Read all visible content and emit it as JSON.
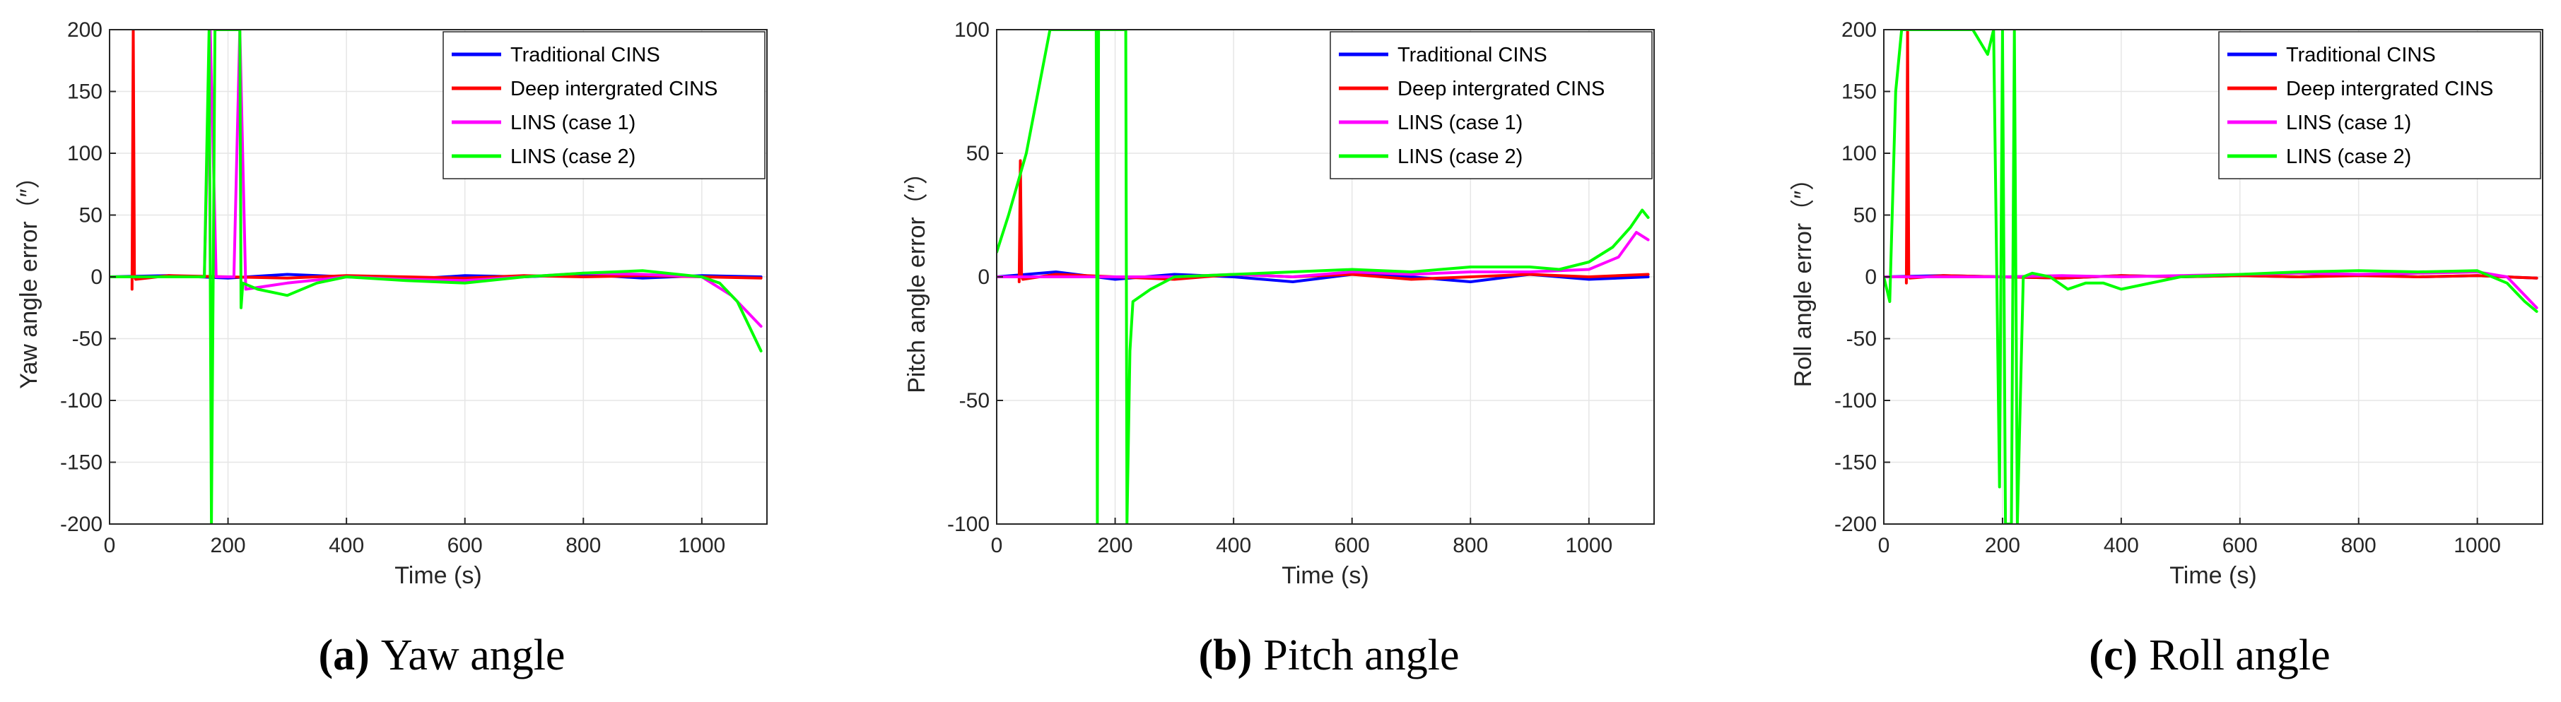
{
  "figure": {
    "background": "#ffffff"
  },
  "colors": {
    "Traditional CINS": "#0000ff",
    "Deep intergrated CINS": "#ff0000",
    "LINS (case 1)": "#ff00ff",
    "LINS (case 2)": "#00ff00"
  },
  "chart_data": [
    {
      "type": "line",
      "id": "a",
      "caption_letter": "(a)",
      "caption_text": "Yaw angle",
      "xlabel": "Time (s)",
      "ylabel": "Yaw angle error（″）",
      "xlim": [
        0,
        1110
      ],
      "ylim": [
        -200,
        200
      ],
      "xticks": [
        0,
        200,
        400,
        600,
        800,
        1000
      ],
      "yticks": [
        -200,
        -150,
        -100,
        -50,
        0,
        50,
        100,
        150,
        200
      ],
      "grid": true,
      "legend_position": "top-right",
      "series": [
        {
          "name": "Traditional CINS",
          "x": [
            0,
            100,
            200,
            300,
            400,
            500,
            600,
            700,
            800,
            900,
            1000,
            1100
          ],
          "y": [
            0,
            1,
            -1,
            2,
            0,
            -2,
            1,
            0,
            2,
            -1,
            1,
            0
          ]
        },
        {
          "name": "Deep intergrated CINS",
          "x": [
            38,
            40,
            42,
            44,
            100,
            200,
            300,
            400,
            500,
            600,
            700,
            800,
            900,
            1000,
            1100
          ],
          "y": [
            -10,
            200,
            0,
            -2,
            1,
            0,
            -1,
            1,
            0,
            -1,
            1,
            0,
            1,
            0,
            -1
          ]
        },
        {
          "name": "LINS (case 1)",
          "x": [
            0,
            100,
            160,
            170,
            180,
            210,
            220,
            230,
            300,
            400,
            500,
            600,
            700,
            800,
            900,
            1000,
            1050,
            1080,
            1100
          ],
          "y": [
            0,
            0,
            0,
            200,
            0,
            0,
            200,
            -10,
            -5,
            0,
            -2,
            -3,
            0,
            3,
            2,
            0,
            -15,
            -30,
            -40
          ]
        },
        {
          "name": "LINS (case 2)",
          "x": [
            0,
            100,
            160,
            168,
            172,
            178,
            185,
            215,
            220,
            222,
            225,
            250,
            300,
            350,
            400,
            500,
            600,
            700,
            800,
            900,
            1000,
            1030,
            1060,
            1080,
            1100
          ],
          "y": [
            0,
            0,
            0,
            200,
            -200,
            200,
            200,
            200,
            200,
            -25,
            -5,
            -10,
            -15,
            -5,
            0,
            -3,
            -5,
            0,
            3,
            5,
            0,
            -5,
            -20,
            -40,
            -60
          ]
        }
      ]
    },
    {
      "type": "line",
      "id": "b",
      "caption_letter": "(b)",
      "caption_text": "Pitch angle",
      "xlabel": "Time (s)",
      "ylabel": "Pitch angle error（″）",
      "xlim": [
        0,
        1110
      ],
      "ylim": [
        -100,
        100
      ],
      "xticks": [
        0,
        200,
        400,
        600,
        800,
        1000
      ],
      "yticks": [
        -100,
        -50,
        0,
        50,
        100
      ],
      "grid": true,
      "legend_position": "top-right",
      "series": [
        {
          "name": "Traditional CINS",
          "x": [
            0,
            100,
            200,
            300,
            400,
            500,
            600,
            700,
            800,
            900,
            1000,
            1100
          ],
          "y": [
            0,
            2,
            -1,
            1,
            0,
            -2,
            1,
            0,
            -2,
            1,
            -1,
            0
          ]
        },
        {
          "name": "Deep intergrated CINS",
          "x": [
            38,
            40,
            42,
            44,
            100,
            200,
            300,
            400,
            500,
            600,
            700,
            800,
            900,
            1000,
            1100
          ],
          "y": [
            -2,
            47,
            0,
            -1,
            1,
            0,
            -1,
            1,
            0,
            1,
            -1,
            0,
            1,
            0,
            1
          ]
        },
        {
          "name": "LINS (case 1)",
          "x": [
            0,
            200,
            300,
            400,
            500,
            600,
            700,
            800,
            900,
            1000,
            1050,
            1080,
            1100
          ],
          "y": [
            0,
            0,
            0,
            1,
            0,
            2,
            1,
            2,
            2,
            3,
            8,
            18,
            15
          ]
        },
        {
          "name": "LINS (case 2)",
          "x": [
            0,
            20,
            50,
            90,
            165,
            168,
            170,
            172,
            218,
            220,
            225,
            230,
            260,
            300,
            400,
            500,
            600,
            700,
            800,
            900,
            950,
            1000,
            1040,
            1070,
            1090,
            1100
          ],
          "y": [
            10,
            25,
            50,
            100,
            100,
            100,
            -100,
            100,
            100,
            -100,
            -30,
            -10,
            -5,
            0,
            1,
            2,
            3,
            2,
            4,
            4,
            3,
            6,
            12,
            20,
            27,
            24
          ]
        }
      ]
    },
    {
      "type": "line",
      "id": "c",
      "caption_letter": "(c)",
      "caption_text": "Roll angle",
      "xlabel": "Time (s)",
      "ylabel": "Roll angle error（″）",
      "xlim": [
        0,
        1110
      ],
      "ylim": [
        -200,
        200
      ],
      "xticks": [
        0,
        200,
        400,
        600,
        800,
        1000
      ],
      "yticks": [
        -200,
        -150,
        -100,
        -50,
        0,
        50,
        100,
        150,
        200
      ],
      "grid": true,
      "legend_position": "top-right",
      "series": [
        {
          "name": "Traditional CINS",
          "x": [
            0,
            100,
            200,
            300,
            400,
            500,
            600,
            700,
            800,
            900,
            1000,
            1100
          ],
          "y": [
            0,
            1,
            0,
            -1,
            1,
            0,
            1,
            0,
            2,
            0,
            1,
            -1
          ]
        },
        {
          "name": "Deep intergrated CINS",
          "x": [
            38,
            40,
            42,
            44,
            100,
            200,
            300,
            400,
            500,
            600,
            700,
            800,
            900,
            1000,
            1100
          ],
          "y": [
            -5,
            200,
            0,
            -1,
            1,
            0,
            -1,
            1,
            0,
            1,
            0,
            1,
            0,
            1,
            -1
          ]
        },
        {
          "name": "LINS (case 1)",
          "x": [
            0,
            200,
            300,
            400,
            500,
            600,
            700,
            800,
            900,
            1000,
            1050,
            1080,
            1100
          ],
          "y": [
            0,
            0,
            1,
            0,
            1,
            2,
            3,
            2,
            3,
            4,
            0,
            -15,
            -25
          ]
        },
        {
          "name": "LINS (case 2)",
          "x": [
            0,
            10,
            20,
            30,
            40,
            100,
            150,
            175,
            185,
            195,
            200,
            205,
            215,
            220,
            225,
            235,
            250,
            280,
            310,
            340,
            370,
            400,
            500,
            600,
            700,
            800,
            900,
            1000,
            1050,
            1080,
            1100
          ],
          "y": [
            0,
            -20,
            150,
            200,
            200,
            200,
            200,
            180,
            200,
            -170,
            200,
            -200,
            -200,
            200,
            -200,
            0,
            3,
            0,
            -10,
            -5,
            -5,
            -10,
            0,
            2,
            4,
            5,
            4,
            5,
            -5,
            -20,
            -28
          ]
        }
      ]
    }
  ]
}
